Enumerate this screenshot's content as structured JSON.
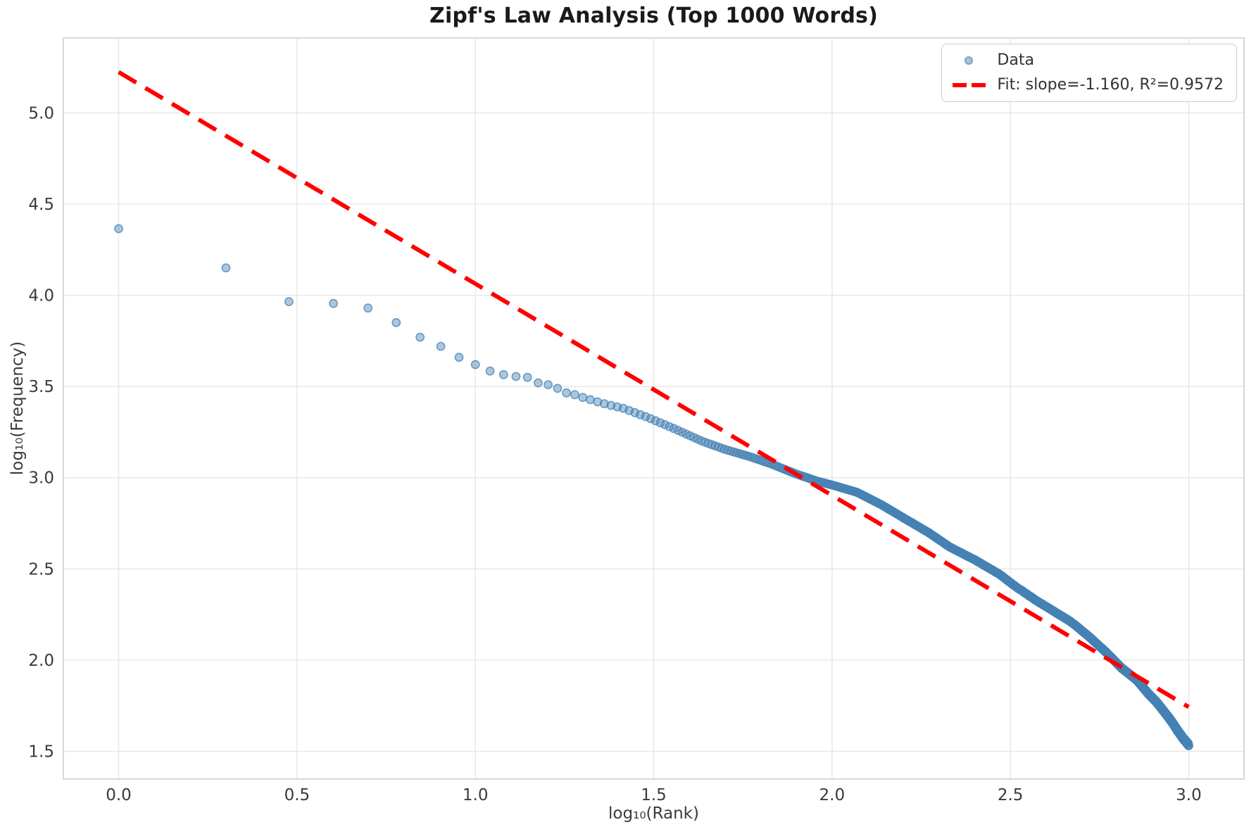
{
  "title": "Zipf's Law Analysis (Top 1000 Words)",
  "axes": {
    "xlabel": "log₁₀(Rank)",
    "ylabel": "log₁₀(Frequency)",
    "x_ticks": [
      0.0,
      0.5,
      1.0,
      1.5,
      2.0,
      2.5,
      3.0
    ],
    "y_ticks": [
      1.5,
      2.0,
      2.5,
      3.0,
      3.5,
      4.0,
      4.5,
      5.0
    ],
    "xlim": [
      -0.155,
      3.155
    ],
    "ylim": [
      1.348,
      5.41
    ],
    "grid": true
  },
  "legend": {
    "position": "upper right",
    "data_label": "Data",
    "fit_label": "Fit: slope=-1.160, R²=0.9572"
  },
  "colors": {
    "scatter_fill": "rgba(70,130,180,0.45)",
    "scatter_edge": "rgba(70,130,180,0.75)",
    "fit_line": "#ff0000",
    "grid_line": "#e7e7e7",
    "frame": "#cfcfcf",
    "tick_text": "#3a3a3a",
    "title_text": "#1a1a1a"
  },
  "chart_data": {
    "type": "scatter",
    "title": "Zipf's Law Analysis (Top 1000 Words)",
    "xlabel": "log10(Rank)",
    "ylabel": "log10(Frequency)",
    "series_name": "Data",
    "n_points": 1000,
    "x_definition": "log10(rank) for rank = 1..1000",
    "anchor_points": [
      [
        0.0,
        4.365
      ],
      [
        0.301,
        4.15
      ],
      [
        0.477,
        3.965
      ],
      [
        0.602,
        3.955
      ],
      [
        0.699,
        3.93
      ],
      [
        0.778,
        3.85
      ],
      [
        0.845,
        3.77
      ],
      [
        0.903,
        3.72
      ],
      [
        0.954,
        3.66
      ],
      [
        1.0,
        3.62
      ],
      [
        1.041,
        3.585
      ],
      [
        1.079,
        3.565
      ],
      [
        1.114,
        3.555
      ],
      [
        1.146,
        3.55
      ],
      [
        1.176,
        3.52
      ],
      [
        1.204,
        3.51
      ],
      [
        1.23,
        3.49
      ],
      [
        1.255,
        3.465
      ],
      [
        1.279,
        3.455
      ],
      [
        1.301,
        3.44
      ],
      [
        1.352,
        3.41
      ],
      [
        1.415,
        3.38
      ],
      [
        1.484,
        3.33
      ],
      [
        1.556,
        3.27
      ],
      [
        1.636,
        3.2
      ],
      [
        1.7,
        3.155
      ],
      [
        1.77,
        3.115
      ],
      [
        1.83,
        3.075
      ],
      [
        1.9,
        3.02
      ],
      [
        1.96,
        2.98
      ],
      [
        2.0,
        2.96
      ],
      [
        2.07,
        2.92
      ],
      [
        2.14,
        2.85
      ],
      [
        2.2,
        2.78
      ],
      [
        2.27,
        2.7
      ],
      [
        2.33,
        2.62
      ],
      [
        2.4,
        2.55
      ],
      [
        2.47,
        2.47
      ],
      [
        2.51,
        2.41
      ],
      [
        2.57,
        2.33
      ],
      [
        2.62,
        2.27
      ],
      [
        2.67,
        2.21
      ],
      [
        2.72,
        2.13
      ],
      [
        2.77,
        2.04
      ],
      [
        2.81,
        1.96
      ],
      [
        2.855,
        1.89
      ],
      [
        2.885,
        1.82
      ],
      [
        2.91,
        1.77
      ],
      [
        2.93,
        1.72
      ],
      [
        2.95,
        1.67
      ],
      [
        2.97,
        1.61
      ],
      [
        2.985,
        1.57
      ],
      [
        3.0,
        1.535
      ]
    ],
    "fit": {
      "slope": -1.16,
      "intercept": 5.223,
      "r_squared": 0.9572,
      "x_start": 0.0,
      "x_end": 3.0,
      "label": "Fit: slope=-1.160, R²=0.9572"
    },
    "xlim": [
      -0.155,
      3.155
    ],
    "ylim": [
      1.348,
      5.41
    ],
    "legend_position": "upper right",
    "grid": true
  }
}
